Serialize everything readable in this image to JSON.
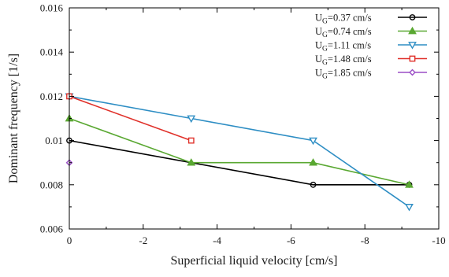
{
  "chart_data": {
    "type": "line",
    "title": "",
    "xlabel": "Superficial liquid velocity [cm/s]",
    "ylabel": "Dominant frequency [1/s]",
    "xlim": [
      0,
      -10
    ],
    "ylim": [
      0.006,
      0.016
    ],
    "x_axis_reversed": true,
    "grid": false,
    "legend_position": "top-right",
    "x_ticks": [
      0,
      -2,
      -4,
      -6,
      -8,
      -10
    ],
    "x_tick_labels": [
      "0",
      "-2",
      "-4",
      "-6",
      "-8",
      "-10"
    ],
    "y_ticks": [
      0.006,
      0.008,
      0.01,
      0.012,
      0.014,
      0.016
    ],
    "y_tick_labels": [
      "0.006",
      "0.008",
      "0.01",
      "0.012",
      "0.014",
      "0.016"
    ],
    "series": [
      {
        "name": "U_G=0.37 cm/s",
        "legend_prefix": "U",
        "legend_sub": "G",
        "legend_suffix": "=0.37 cm/s",
        "color": "#000000",
        "marker": "circle",
        "x": [
          0,
          -6.6,
          -9.2
        ],
        "y": [
          0.01,
          0.008,
          0.008
        ]
      },
      {
        "name": "U_G=0.74 cm/s",
        "legend_prefix": "U",
        "legend_sub": "G",
        "legend_suffix": "=0.74 cm/s",
        "color": "#5aa832",
        "marker": "triangle-up",
        "x": [
          0,
          -3.3,
          -6.6,
          -9.2
        ],
        "y": [
          0.011,
          0.009,
          0.009,
          0.008
        ]
      },
      {
        "name": "U_G=1.11 cm/s",
        "legend_prefix": "U",
        "legend_sub": "G",
        "legend_suffix": "=1.11 cm/s",
        "color": "#2e8ec4",
        "marker": "triangle-down",
        "x": [
          0,
          -3.3,
          -6.6,
          -9.2
        ],
        "y": [
          0.012,
          0.011,
          0.01,
          0.007
        ]
      },
      {
        "name": "U_G=1.48 cm/s",
        "legend_prefix": "U",
        "legend_sub": "G",
        "legend_suffix": "=1.48 cm/s",
        "color": "#e0312a",
        "marker": "square",
        "x": [
          0,
          -3.3
        ],
        "y": [
          0.012,
          0.01
        ]
      },
      {
        "name": "U_G=1.85 cm/s",
        "legend_prefix": "U",
        "legend_sub": "G",
        "legend_suffix": "=1.85 cm/s",
        "color": "#9b4fc6",
        "marker": "diamond",
        "x": [
          0
        ],
        "y": [
          0.009
        ]
      }
    ]
  }
}
